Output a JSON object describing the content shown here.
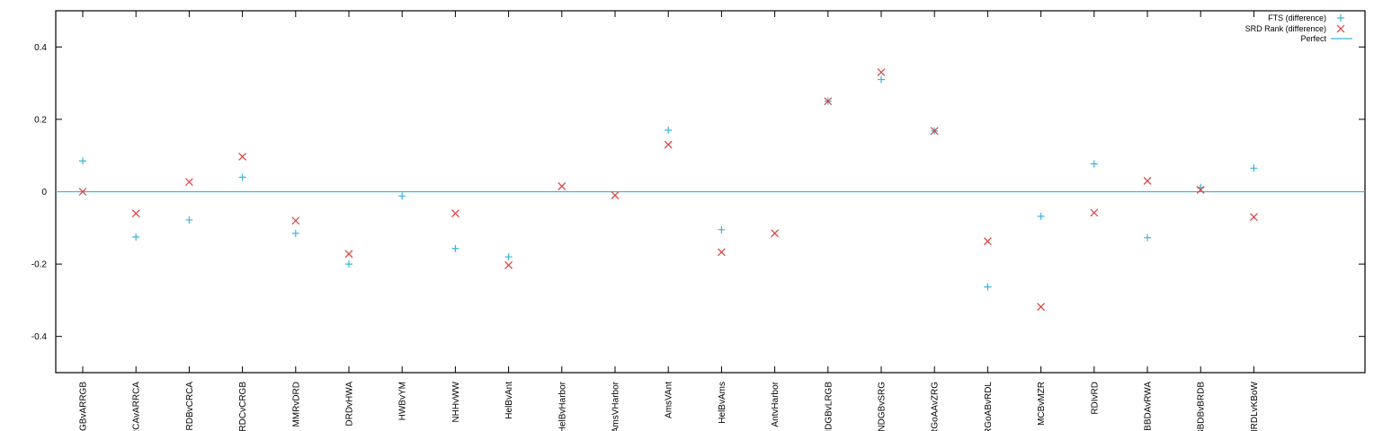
{
  "chart_data": {
    "type": "scatter",
    "categories": [
      "NRGBvARRGB",
      "NRCAvARRCA",
      "RCRDBvCRCA",
      "RCRDCvCRGB",
      "MMRvDRD",
      "DRDvHWA",
      "HWBvYM",
      "NHHvWW",
      "HelBvAnt",
      "HelBvHarbor",
      "AmsVHarbor",
      "AmsVAnt",
      "HelBvAms",
      "AntvHarbor",
      "NDGBvLRGB",
      "NDGBvSRG",
      "RGoAAvZRG",
      "RGoABvRDL",
      "MCBvMZR",
      "RDIvRD",
      "BBDAvRWA",
      "BBDBvBRDB",
      "HRDLvKBoW"
    ],
    "series": [
      {
        "name": "FTS (difference)",
        "color": "#3cb4dc",
        "marker": "plus",
        "values": [
          0.085,
          -0.125,
          -0.078,
          0.04,
          -0.115,
          -0.2,
          -0.012,
          -0.157,
          -0.18,
          null,
          null,
          0.17,
          -0.105,
          null,
          0.25,
          0.31,
          0.168,
          -0.263,
          -0.068,
          0.077,
          -0.127,
          0.012,
          0.065
        ]
      },
      {
        "name": "SRD Rank (difference)",
        "color": "#dc3c3c",
        "marker": "cross",
        "values": [
          0,
          -0.06,
          0.027,
          0.097,
          -0.08,
          -0.172,
          null,
          -0.06,
          -0.203,
          0.015,
          -0.01,
          0.13,
          -0.167,
          -0.115,
          0.25,
          0.33,
          0.168,
          -0.137,
          -0.318,
          -0.058,
          0.03,
          0.005,
          -0.07
        ]
      },
      {
        "name": "Perfect",
        "color": "#3cb4dc",
        "marker": "line",
        "values": [
          0
        ]
      }
    ],
    "ylim": [
      -0.5,
      0.5
    ],
    "yticks": [
      {
        "value": 0.4,
        "label": "0.4"
      },
      {
        "value": 0.2,
        "label": "0.2"
      },
      {
        "value": 0,
        "label": "0"
      },
      {
        "value": -0.2,
        "label": "-0.2"
      },
      {
        "value": -0.4,
        "label": "-0.4"
      }
    ],
    "grid": false,
    "legend": "top-right",
    "title": "",
    "xlabel": "",
    "ylabel": ""
  }
}
